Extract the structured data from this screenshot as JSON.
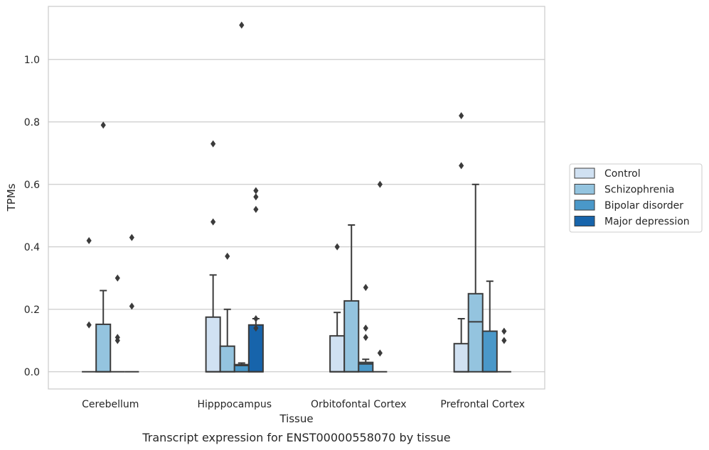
{
  "chart_data": {
    "type": "box",
    "title": "",
    "caption": "Transcript expression for ENST00000558070 by tissue",
    "xlabel": "Tissue",
    "ylabel": "TPMs",
    "ylim": [
      -0.055,
      1.17
    ],
    "yticks": [
      0.0,
      0.2,
      0.4,
      0.6,
      0.8,
      1.0
    ],
    "ytick_labels": [
      "0.0",
      "0.2",
      "0.4",
      "0.6",
      "0.8",
      "1.0"
    ],
    "grid": "horizontal",
    "legend_position": "right",
    "categories": [
      "Cerebellum",
      "Hipppocampus",
      "Orbitofontal Cortex",
      "Prefrontal Cortex"
    ],
    "series": [
      {
        "name": "Control",
        "color": "#d0e1f2",
        "boxes": [
          {
            "q1": 0,
            "median": 0,
            "q3": 0,
            "whisker_low": 0,
            "whisker_high": 0,
            "outliers": [
              0.15,
              0.42
            ]
          },
          {
            "q1": 0,
            "median": 0,
            "q3": 0.175,
            "whisker_low": 0,
            "whisker_high": 0.31,
            "outliers": [
              0.48,
              0.73
            ]
          },
          {
            "q1": 0,
            "median": 0,
            "q3": 0.115,
            "whisker_low": 0,
            "whisker_high": 0.19,
            "outliers": [
              0.4
            ]
          },
          {
            "q1": 0,
            "median": 0,
            "q3": 0.09,
            "whisker_low": 0,
            "whisker_high": 0.17,
            "outliers": [
              0.66,
              0.82
            ]
          }
        ]
      },
      {
        "name": "Schizophrenia",
        "color": "#94c4df",
        "boxes": [
          {
            "q1": 0,
            "median": 0,
            "q3": 0.152,
            "whisker_low": 0,
            "whisker_high": 0.26,
            "outliers": [
              0.79
            ]
          },
          {
            "q1": 0,
            "median": 0,
            "q3": 0.082,
            "whisker_low": 0,
            "whisker_high": 0.2,
            "outliers": [
              0.37
            ]
          },
          {
            "q1": 0,
            "median": 0,
            "q3": 0.227,
            "whisker_low": 0,
            "whisker_high": 0.47,
            "outliers": []
          },
          {
            "q1": 0,
            "median": 0.16,
            "q3": 0.25,
            "whisker_low": 0,
            "whisker_high": 0.6,
            "outliers": []
          }
        ]
      },
      {
        "name": "Bipolar disorder",
        "color": "#4a98c9",
        "boxes": [
          {
            "q1": 0,
            "median": 0,
            "q3": 0,
            "whisker_low": 0,
            "whisker_high": 0,
            "outliers": [
              0.1,
              0.11,
              0.3
            ]
          },
          {
            "q1": 0,
            "median": 0.02,
            "q3": 0.023,
            "whisker_low": 0,
            "whisker_high": 0.028,
            "outliers": [
              1.11
            ]
          },
          {
            "q1": 0,
            "median": 0.025,
            "q3": 0.03,
            "whisker_low": 0,
            "whisker_high": 0.04,
            "outliers": [
              0.14,
              0.11,
              0.27
            ]
          },
          {
            "q1": 0,
            "median": 0,
            "q3": 0.13,
            "whisker_low": 0,
            "whisker_high": 0.29,
            "outliers": []
          }
        ]
      },
      {
        "name": "Major depression",
        "color": "#1764ab",
        "boxes": [
          {
            "q1": 0,
            "median": 0,
            "q3": 0,
            "whisker_low": 0,
            "whisker_high": 0,
            "outliers": [
              0.21,
              0.43
            ]
          },
          {
            "q1": 0,
            "median": 0,
            "q3": 0.15,
            "whisker_low": 0,
            "whisker_high": 0.17,
            "outliers": [
              0.14,
              0.17,
              0.52,
              0.56,
              0.58
            ]
          },
          {
            "q1": 0,
            "median": 0,
            "q3": 0,
            "whisker_low": 0,
            "whisker_high": 0,
            "outliers": [
              0.06,
              0.6
            ]
          },
          {
            "q1": 0,
            "median": 0,
            "q3": 0,
            "whisker_low": 0,
            "whisker_high": 0,
            "outliers": [
              0.1,
              0.13
            ]
          }
        ]
      }
    ]
  }
}
